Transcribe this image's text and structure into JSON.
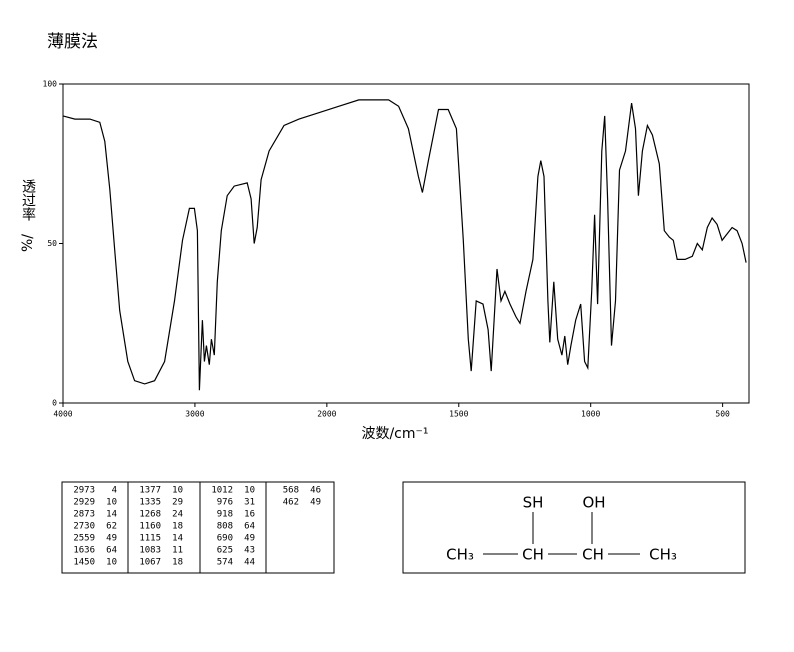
{
  "chart_data": {
    "type": "line",
    "title": "薄膜法",
    "xlabel": "波数/cm⁻¹",
    "ylabel": {
      "text": "透过率",
      "unit": "%/"
    },
    "xlim": [
      4000,
      400
    ],
    "xticks": [
      4000,
      3000,
      2000,
      1500,
      1000,
      500
    ],
    "ylim": [
      0,
      100
    ],
    "yticks": [
      0,
      50,
      100
    ],
    "color": "#000000",
    "x": [
      4000,
      3910,
      3834,
      3796,
      3721,
      3683,
      3645,
      3608,
      3570,
      3509,
      3457,
      3381,
      3306,
      3230,
      3155,
      3094,
      3042,
      3004,
      2981,
      2966,
      2943,
      2928,
      2913,
      2891,
      2875,
      2853,
      2830,
      2800,
      2755,
      2702,
      2604,
      2574,
      2551,
      2528,
      2498,
      2438,
      2325,
      2211,
      2060,
      1955,
      1879,
      1766,
      1728,
      1691,
      1653,
      1638,
      1615,
      1577,
      1540,
      1509,
      1483,
      1464,
      1453,
      1434,
      1408,
      1389,
      1377,
      1362,
      1355,
      1340,
      1325,
      1306,
      1283,
      1268,
      1245,
      1219,
      1200,
      1189,
      1177,
      1162,
      1155,
      1140,
      1125,
      1109,
      1098,
      1087,
      1075,
      1057,
      1038,
      1023,
      1011,
      996,
      985,
      974,
      958,
      947,
      936,
      921,
      906,
      891,
      868,
      845,
      830,
      819,
      804,
      785,
      766,
      740,
      721,
      702,
      687,
      672,
      642,
      615,
      596,
      577,
      558,
      540,
      521,
      502,
      483,
      464,
      445,
      426,
      411
    ],
    "values": [
      90,
      89,
      89,
      89,
      88,
      82,
      67,
      48,
      29,
      13,
      7,
      6,
      7,
      13,
      32,
      51,
      61,
      61,
      54,
      4,
      26,
      13,
      18,
      12,
      20,
      15,
      38,
      54,
      65,
      68,
      69,
      64,
      50,
      55,
      70,
      79,
      87,
      89,
      91,
      93,
      95,
      95,
      93,
      86,
      71,
      66,
      76,
      92,
      92,
      86,
      51,
      20,
      10,
      32,
      31,
      23,
      10,
      32,
      42,
      32,
      35,
      31,
      27,
      25,
      35,
      45,
      71,
      76,
      71,
      32,
      19,
      38,
      20,
      15,
      21,
      12,
      18,
      26,
      31,
      13,
      11,
      35,
      59,
      31,
      79,
      90,
      64,
      18,
      32,
      73,
      79,
      94,
      86,
      65,
      79,
      87,
      84,
      75,
      54,
      52,
      51,
      45,
      45,
      46,
      50,
      48,
      55,
      58,
      56,
      51,
      53,
      55,
      54,
      50,
      44
    ]
  },
  "peak_table": [
    [
      [
        2973,
        4
      ],
      [
        2929,
        10
      ],
      [
        2873,
        14
      ],
      [
        2730,
        62
      ],
      [
        2559,
        49
      ],
      [
        1636,
        64
      ],
      [
        1450,
        10
      ]
    ],
    [
      [
        1377,
        10
      ],
      [
        1335,
        29
      ],
      [
        1268,
        24
      ],
      [
        1160,
        18
      ],
      [
        1115,
        14
      ],
      [
        1083,
        11
      ],
      [
        1067,
        18
      ]
    ],
    [
      [
        1012,
        10
      ],
      [
        976,
        31
      ],
      [
        918,
        16
      ],
      [
        808,
        64
      ],
      [
        690,
        49
      ],
      [
        625,
        43
      ],
      [
        574,
        44
      ]
    ],
    [
      [
        568,
        46
      ],
      [
        462,
        49
      ]
    ]
  ],
  "structure": {
    "substituents": [
      "SH",
      "OH"
    ],
    "chain": [
      "CH₃",
      "CH",
      "CH",
      "CH₃"
    ]
  }
}
